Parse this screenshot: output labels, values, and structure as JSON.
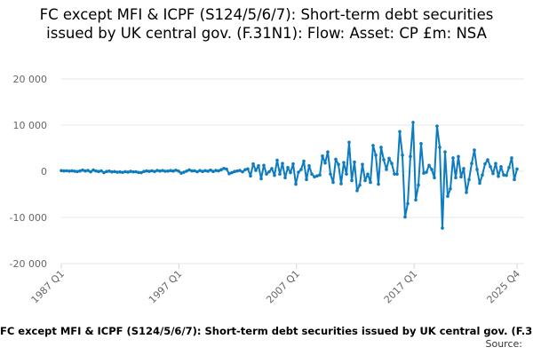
{
  "chart_data": {
    "type": "line",
    "title": "FC except MFI & ICPF (S124/5/6/7): Short-term debt securities issued by UK central gov. (F.31N1): Flow: Asset: CP £m: NSA",
    "xlabel": "",
    "ylabel": "",
    "x_start": "1987 Q1",
    "x_end": "2025 Q4",
    "x_ticks": [
      "1987 Q1",
      "1997 Q1",
      "2007 Q1",
      "2017 Q1",
      "2025 Q4"
    ],
    "y_ticks": [
      20000,
      10000,
      0,
      -10000,
      -20000
    ],
    "y_tick_labels": [
      "20 000",
      "10 000",
      "0",
      "-10 000",
      "-20 000"
    ],
    "ylim": [
      -20000,
      20000
    ],
    "grid": "horizontal",
    "legend": "none",
    "series": [
      {
        "color": "#0c7bbf",
        "values": [
          150,
          80,
          120,
          40,
          100,
          20,
          -60,
          80,
          260,
          60,
          180,
          -120,
          280,
          60,
          -40,
          90,
          -300,
          -40,
          40,
          -140,
          -60,
          -200,
          -140,
          -240,
          -80,
          -180,
          -20,
          -120,
          -100,
          -260,
          -300,
          -40,
          80,
          -20,
          120,
          -60,
          180,
          50,
          160,
          20,
          40,
          150,
          30,
          240,
          40,
          -400,
          -200,
          40,
          300,
          80,
          120,
          -100,
          160,
          -40,
          140,
          20,
          260,
          -40,
          180,
          100,
          340,
          620,
          480,
          -520,
          -300,
          -40,
          60,
          180,
          -120,
          360,
          520,
          -1000,
          1600,
          200,
          1200,
          -1600,
          1300,
          -600,
          -100,
          600,
          -900,
          2400,
          -600,
          1700,
          -1400,
          800,
          -300,
          1600,
          -2800,
          -200,
          400,
          2200,
          -1800,
          1200,
          -600,
          -1200,
          -1000,
          -800,
          3300,
          1800,
          4200,
          -600,
          -2400,
          2600,
          1500,
          -2700,
          1900,
          -600,
          6300,
          -2000,
          2000,
          -4200,
          -3000,
          1500,
          -2000,
          -600,
          -2400,
          5600,
          3500,
          -2800,
          5200,
          2500,
          400,
          2800,
          1700,
          -600,
          -600,
          8600,
          3500,
          -9900,
          -7000,
          3200,
          10600,
          -6200,
          -3000,
          6000,
          -400,
          -200,
          1300,
          400,
          -1400,
          9800,
          5200,
          -12300,
          4200,
          -5400,
          -3800,
          2900,
          -1400,
          3200,
          -1200,
          600,
          -4600,
          -1800,
          1700,
          4600,
          400,
          -2600,
          -800,
          1600,
          2500,
          1000,
          -500,
          1700,
          -1100,
          1000,
          -800,
          -900,
          800,
          2900,
          -1800,
          500
        ]
      }
    ],
    "source_label": "Source:"
  }
}
